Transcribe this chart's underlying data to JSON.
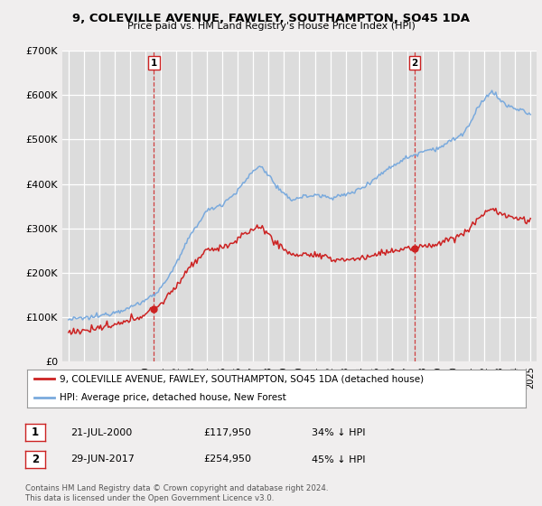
{
  "title": "9, COLEVILLE AVENUE, FAWLEY, SOUTHAMPTON, SO45 1DA",
  "subtitle": "Price paid vs. HM Land Registry's House Price Index (HPI)",
  "bg_color": "#f0eeee",
  "plot_bg_color": "#dcdcdc",
  "hpi_color": "#7aaadd",
  "price_color": "#cc2222",
  "vline_color": "#cc2222",
  "sale1_date_num": 2000.55,
  "sale1_price": 117950,
  "sale2_date_num": 2017.49,
  "sale2_price": 254950,
  "ylim": [
    0,
    700000
  ],
  "xlim_start": 1994.6,
  "xlim_end": 2025.4,
  "legend_line1": "9, COLEVILLE AVENUE, FAWLEY, SOUTHAMPTON, SO45 1DA (detached house)",
  "legend_line2": "HPI: Average price, detached house, New Forest",
  "note1_date": "21-JUL-2000",
  "note1_price": "£117,950",
  "note1_pct": "34% ↓ HPI",
  "note2_date": "29-JUN-2017",
  "note2_price": "£254,950",
  "note2_pct": "45% ↓ HPI",
  "copyright": "Contains HM Land Registry data © Crown copyright and database right 2024.\nThis data is licensed under the Open Government Licence v3.0."
}
